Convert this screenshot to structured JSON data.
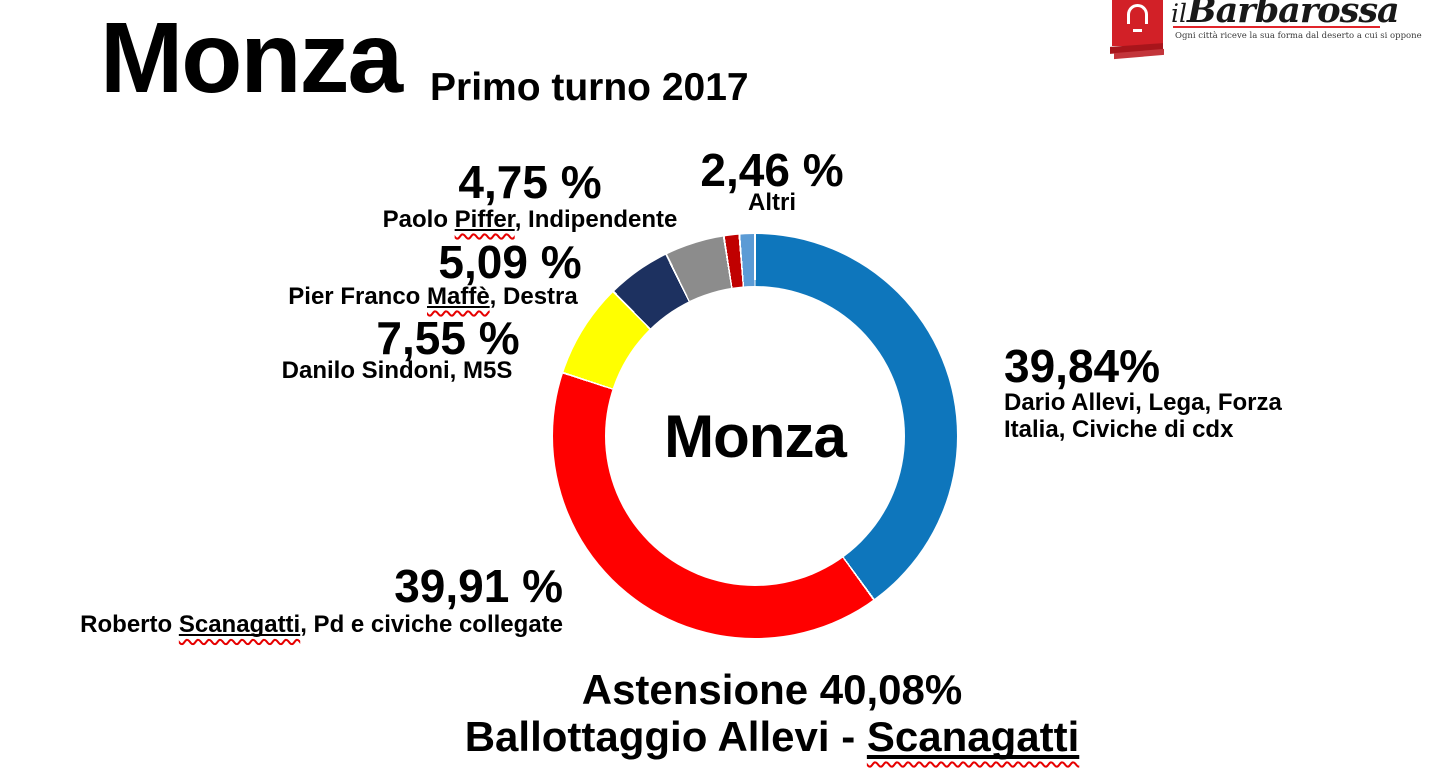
{
  "header": {
    "title": "Monza",
    "subtitle": "Primo turno 2017"
  },
  "logo": {
    "prefix": "il",
    "name": "Barbarossa",
    "tagline": "Ogni città riceve la sua forma dal deserto a cui si oppone",
    "icon": "bell-icon",
    "accent_color": "#d22027"
  },
  "chart_data": {
    "type": "pie",
    "subtype": "donut",
    "title": "Monza Primo turno 2017",
    "center_label": "Monza",
    "unit": "%",
    "direction": "clockwise",
    "start_angle_deg": 0,
    "legend": "none",
    "series": [
      {
        "name": "Dario Allevi, Lega, Forza Italia, Civiche di cdx",
        "value": 39.84,
        "display_pct": "39,84%",
        "color": "#0e76bc"
      },
      {
        "name": "Roberto Scanagatti, Pd e civiche collegate",
        "value": 39.91,
        "display_pct": "39,91 %",
        "color": "#ff0000"
      },
      {
        "name": "Danilo Sindoni, M5S",
        "value": 7.55,
        "display_pct": "7,55 %",
        "color": "#ffff00"
      },
      {
        "name": "Pier Franco Maffè, Destra",
        "value": 5.09,
        "display_pct": "5,09 %",
        "color": "#1d3160"
      },
      {
        "name": "Paolo Piffer, Indipendente",
        "value": 4.75,
        "display_pct": "4,75 %",
        "color": "#8c8c8c"
      },
      {
        "name": "Altri",
        "value": 2.46,
        "display_pct": "2,46 %",
        "colors": [
          "#c00000",
          "#5b9bd5"
        ]
      }
    ],
    "annotations": [
      "Astensione 40,08%",
      "Ballottaggio Allevi - Scanagatti"
    ]
  },
  "labels": {
    "piffer": {
      "pct": "4,75 %",
      "pre": "Paolo ",
      "word": "Piffer",
      "post": ", Indipendente"
    },
    "altri": {
      "pct": "2,46 %",
      "name": "Altri"
    },
    "maffe": {
      "pct": "5,09 %",
      "pre": "Pier Franco ",
      "word": "Maffè",
      "post": ", Destra"
    },
    "sindoni": {
      "pct": "7,55 %",
      "name": "Danilo Sindoni, M5S"
    },
    "allevi": {
      "pct": "39,84%",
      "line1": "Dario Allevi, Lega, Forza",
      "line2": "Italia, Civiche di cdx"
    },
    "scanagatti": {
      "pct": "39,91 %",
      "pre": "Roberto ",
      "word": "Scanagatti",
      "post": ", Pd e civiche collegate"
    }
  },
  "center": {
    "label": "Monza"
  },
  "footer": {
    "line1": "Astensione 40,08%",
    "line2_pre": "Ballottaggio Allevi - ",
    "line2_word": "Scanagatti"
  }
}
